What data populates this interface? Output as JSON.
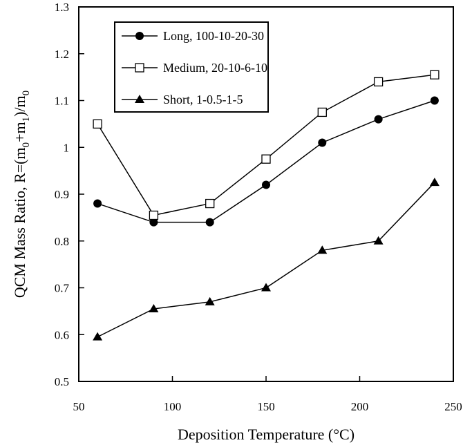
{
  "chart_data": {
    "type": "line",
    "title": "",
    "xlabel": "Deposition Temperature (°C)",
    "ylabel": "QCM Mass Ratio, R=(m",
    "ylabel_parts": [
      "QCM Mass Ratio, R=(m",
      "0",
      "+m",
      "1",
      ")/m",
      "0"
    ],
    "xlim": [
      50,
      250
    ],
    "ylim": [
      0.5,
      1.3
    ],
    "x_ticks": [
      50,
      100,
      150,
      200,
      250
    ],
    "y_ticks": [
      0.5,
      0.6,
      0.7,
      0.8,
      0.9,
      1,
      1.1,
      1.2,
      1.3
    ],
    "x_tick_labels": [
      "50",
      "100",
      "150",
      "200",
      "250"
    ],
    "y_tick_labels": [
      "0.5",
      "0.6",
      "0.7",
      "0.8",
      "0.9",
      "1",
      "1.1",
      "1.2",
      "1.3"
    ],
    "grid": false,
    "legend_position": "top-left",
    "x": [
      60,
      90,
      120,
      150,
      180,
      210,
      240
    ],
    "series": [
      {
        "name": "Long, 100-10-20-30",
        "marker": "filled-circle",
        "color": "#000000",
        "values": [
          0.88,
          0.84,
          0.84,
          0.92,
          1.01,
          1.06,
          1.1
        ]
      },
      {
        "name": "Medium, 20-10-6-10",
        "marker": "open-square",
        "color": "#000000",
        "values": [
          1.05,
          0.855,
          0.88,
          0.975,
          1.075,
          1.14,
          1.155
        ]
      },
      {
        "name": "Short, 1-0.5-1-5",
        "marker": "filled-triangle",
        "color": "#000000",
        "values": [
          0.595,
          0.655,
          0.67,
          0.7,
          0.78,
          0.8,
          0.925
        ]
      }
    ]
  }
}
